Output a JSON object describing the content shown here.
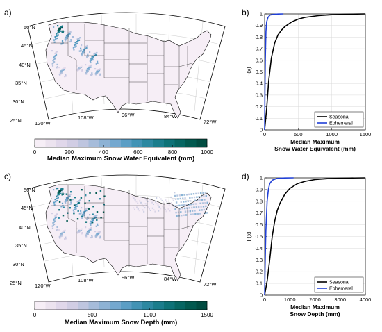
{
  "panels": {
    "a": "a)",
    "b": "b)",
    "c": "c)",
    "d": "d)"
  },
  "map_labels": {
    "lat": [
      "50°N",
      "45°N",
      "40°N",
      "35°N",
      "30°N",
      "25°N"
    ],
    "lon": [
      "120°W",
      "108°W",
      "96°W",
      "84°W",
      "72°W"
    ]
  },
  "colorbar_swe": {
    "title": "Median Maximum Snow Water Equivalent (mm)",
    "ticks": [
      "0",
      "200",
      "400",
      "600",
      "800",
      "1000"
    ],
    "colors": [
      "#f6eef6",
      "#ece3ef",
      "#e0d7ea",
      "#d1cde4",
      "#bec5df",
      "#a6bcda",
      "#8db2d4",
      "#74a8cf",
      "#5b9ec5",
      "#4293b5",
      "#2c88a1",
      "#1a7d8c",
      "#0d7277",
      "#066662",
      "#02594f",
      "#014c41"
    ]
  },
  "colorbar_depth": {
    "title": "Median Maximum Snow Depth (mm)",
    "ticks": [
      "0",
      "500",
      "1000",
      "1500"
    ],
    "colors": [
      "#f6eef6",
      "#ece3ef",
      "#e0d7ea",
      "#d1cde4",
      "#bec5df",
      "#a6bcda",
      "#8db2d4",
      "#74a8cf",
      "#5b9ec5",
      "#4293b5",
      "#2c88a1",
      "#1a7d8c",
      "#0d7277",
      "#066662",
      "#02594f",
      "#014c41"
    ]
  },
  "chart_data": [
    {
      "type": "line",
      "panel": "b)",
      "xlabel": "Median Maximum Snow Water Equivalent (mm)",
      "xlabel_lines": [
        "Median Maximum",
        "Snow Water Equivalent (mm)"
      ],
      "ylabel": "F(x)",
      "xlim": [
        0,
        1500
      ],
      "ylim": [
        0,
        1
      ],
      "xticks": [
        0,
        500,
        1000,
        1500
      ],
      "yticks": [
        0,
        0.1,
        0.2,
        0.3,
        0.4,
        0.5,
        0.6,
        0.7,
        0.8,
        0.9,
        1
      ],
      "grid": true,
      "legend": "bottom-right",
      "series": [
        {
          "name": "Seasonal",
          "color": "#000000",
          "x": [
            0,
            30,
            60,
            100,
            150,
            200,
            250,
            300,
            400,
            500,
            600,
            800,
            1000,
            1200,
            1500
          ],
          "y": [
            0,
            0.18,
            0.42,
            0.62,
            0.75,
            0.82,
            0.86,
            0.89,
            0.93,
            0.955,
            0.97,
            0.985,
            0.993,
            0.997,
            1
          ]
        },
        {
          "name": "Ephemeral",
          "color": "#1f3fd6",
          "x": [
            0,
            5,
            10,
            20,
            30,
            50,
            80,
            120,
            200,
            280
          ],
          "y": [
            0,
            0.35,
            0.6,
            0.85,
            0.93,
            0.97,
            0.99,
            0.995,
            0.999,
            1
          ]
        }
      ]
    },
    {
      "type": "line",
      "panel": "d)",
      "xlabel": "Median Maximum Snow Depth (mm)",
      "xlabel_lines": [
        "Median Maximum",
        "Snow Depth (mm)"
      ],
      "ylabel": "F(x)",
      "xlim": [
        0,
        4000
      ],
      "ylim": [
        0,
        1
      ],
      "xticks": [
        0,
        1000,
        2000,
        3000,
        4000
      ],
      "yticks": [
        0,
        0.1,
        0.2,
        0.3,
        0.4,
        0.5,
        0.6,
        0.7,
        0.8,
        0.9,
        1
      ],
      "grid": true,
      "legend": "bottom-right",
      "series": [
        {
          "name": "Seasonal",
          "color": "#000000",
          "x": [
            0,
            100,
            200,
            300,
            400,
            500,
            600,
            800,
            1000,
            1300,
            1600,
            2000,
            2500,
            3000,
            4000
          ],
          "y": [
            0,
            0.12,
            0.3,
            0.5,
            0.63,
            0.72,
            0.78,
            0.86,
            0.91,
            0.95,
            0.97,
            0.985,
            0.993,
            0.997,
            1
          ]
        },
        {
          "name": "Ephemeral",
          "color": "#1f3fd6",
          "x": [
            0,
            20,
            50,
            100,
            150,
            200,
            300,
            500,
            800,
            1150
          ],
          "y": [
            0,
            0.25,
            0.55,
            0.8,
            0.9,
            0.95,
            0.98,
            0.995,
            0.999,
            1
          ]
        }
      ]
    }
  ]
}
